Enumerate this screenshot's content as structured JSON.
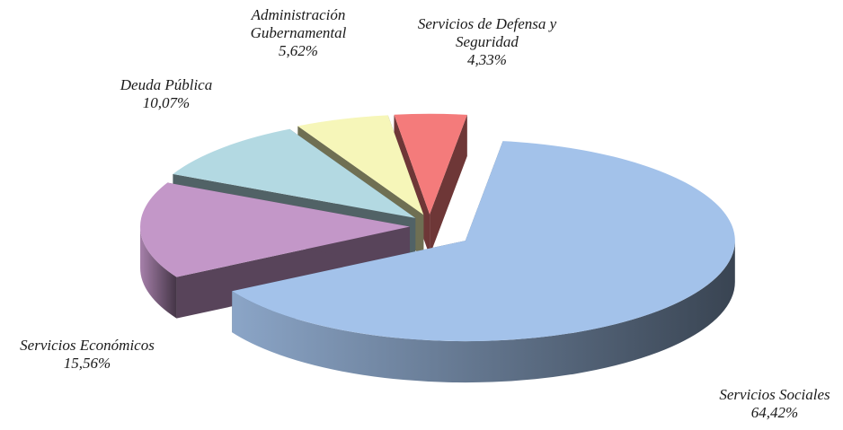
{
  "chart_data": {
    "type": "pie3d",
    "categories": [
      "Servicios Sociales",
      "Servicios Económicos",
      "Deuda Pública",
      "Administración Gubernamental",
      "Servicios de Defensa y Seguridad"
    ],
    "values": [
      64.42,
      15.56,
      10.07,
      5.62,
      4.33
    ],
    "value_labels": [
      "64,42%",
      "15,56%",
      "10,07%",
      "5,62%",
      "4,33%"
    ],
    "colors": [
      "#a3c2ea",
      "#c397c8",
      "#b3d9e2",
      "#f6f6b9",
      "#f47b7b"
    ]
  }
}
